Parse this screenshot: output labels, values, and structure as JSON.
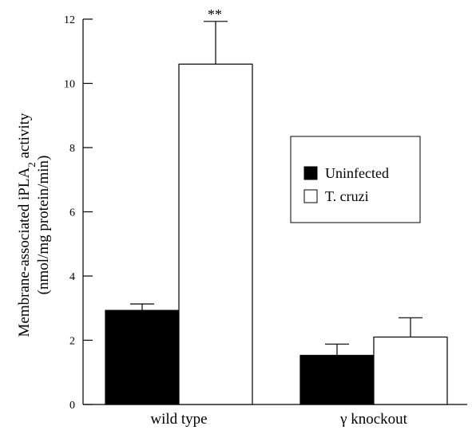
{
  "chart_data": {
    "type": "bar",
    "categories": [
      "wild type",
      "γ knockout"
    ],
    "series": [
      {
        "name": "Uninfected",
        "values": [
          2.93,
          1.53
        ],
        "errors": [
          0.2,
          0.35
        ],
        "color": "#000000"
      },
      {
        "name": "T. cruzi",
        "values": [
          10.6,
          2.1
        ],
        "errors": [
          1.33,
          0.6
        ],
        "color": "#ffffff"
      }
    ],
    "ylabel_main": "Membrane-associated iPLA",
    "ylabel_sub": "2",
    "ylabel_tail": " activity",
    "ylabel_units": "(nmol/mg protein/min)",
    "ylim": [
      0,
      12
    ],
    "yticks": [
      0,
      2,
      4,
      6,
      8,
      10,
      12
    ],
    "legend_position": "right-center",
    "annotations": [
      {
        "text": "**",
        "category": 0,
        "series": 1
      }
    ],
    "grid": false
  }
}
